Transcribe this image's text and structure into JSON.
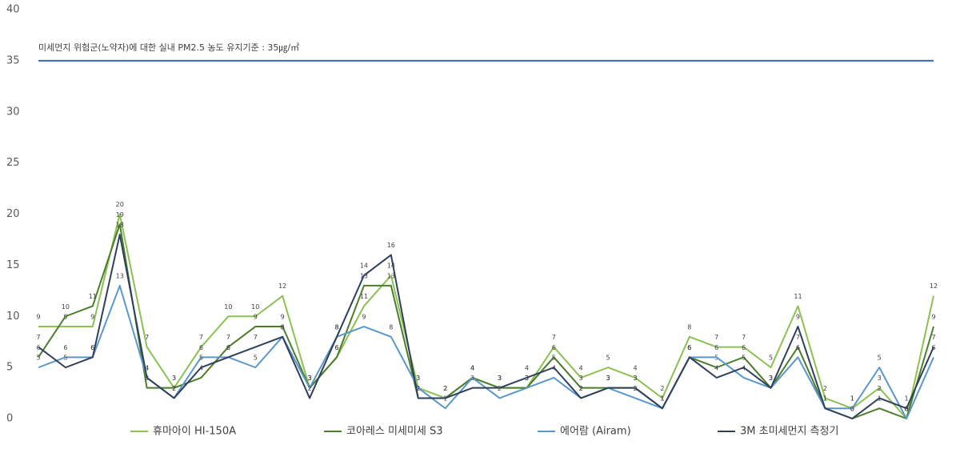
{
  "chart_data": {
    "type": "line",
    "categories": [
      null,
      null,
      null,
      null,
      null,
      null,
      null,
      null,
      null,
      null,
      null,
      null,
      null,
      null,
      null,
      null,
      null,
      null,
      null,
      null,
      null,
      null,
      null,
      null,
      null,
      null,
      null,
      null,
      null,
      null,
      null,
      null,
      null,
      null
    ],
    "series": [
      {
        "name": "휴마아이 HI-150A",
        "color": "#8cc152",
        "values": [
          9,
          9,
          9,
          20,
          7,
          3,
          7,
          10,
          10,
          12,
          3,
          6,
          11,
          14,
          3,
          2,
          4,
          3,
          3,
          7,
          4,
          5,
          4,
          2,
          8,
          7,
          7,
          5,
          11,
          2,
          1,
          3,
          0,
          12
        ]
      },
      {
        "name": "코아레스 미세미세 S3",
        "color": "#4b7d2a",
        "values": [
          6,
          10,
          11,
          19,
          3,
          3,
          4,
          7,
          9,
          9,
          3,
          6,
          13,
          13,
          2,
          2,
          4,
          3,
          3,
          6,
          3,
          3,
          3,
          1,
          6,
          5,
          6,
          3,
          7,
          1,
          0,
          1,
          0,
          9
        ]
      },
      {
        "name": "에어람 (Airam)",
        "color": "#5b97c9",
        "values": [
          5,
          6,
          6,
          13,
          4,
          2,
          6,
          6,
          5,
          8,
          3,
          8,
          9,
          8,
          3,
          1,
          4,
          2,
          3,
          4,
          2,
          3,
          2,
          1,
          6,
          6,
          4,
          3,
          6,
          1,
          1,
          5,
          0,
          6
        ]
      },
      {
        "name": "3M 초미세먼지 측정기",
        "color": "#2f3f5c",
        "values": [
          7,
          5,
          6,
          18,
          4,
          2,
          5,
          6,
          7,
          8,
          2,
          8,
          14,
          16,
          2,
          2,
          3,
          3,
          4,
          5,
          2,
          3,
          3,
          1,
          6,
          4,
          5,
          3,
          9,
          1,
          0,
          2,
          1,
          7
        ]
      }
    ],
    "reference_line": {
      "value": 35,
      "label": "미세먼지 위험군(노약자)에 대한 실내 PM2.5 농도 유지기준 : 35㎍/㎥",
      "color": "#3a68b8"
    },
    "ylim": [
      0,
      40
    ],
    "yticks": [
      0,
      5,
      10,
      15,
      20,
      25,
      30,
      35,
      40
    ],
    "grid": false,
    "legend": "bottom"
  }
}
